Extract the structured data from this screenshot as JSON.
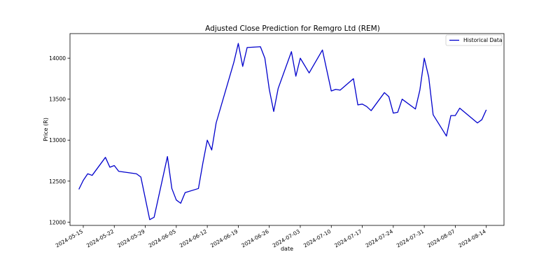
{
  "chart_data": {
    "type": "line",
    "title": "Adjusted Close Prediction for Remgro Ltd (REM)",
    "xlabel": "date",
    "ylabel": "Price (R)",
    "ylim": [
      11960,
      14300
    ],
    "xlim": [
      "2024-05-12",
      "2024-08-18"
    ],
    "yticks": [
      12000,
      12500,
      13000,
      13500,
      14000
    ],
    "xticks": [
      "2024-05-15",
      "2024-05-22",
      "2024-05-29",
      "2024-06-05",
      "2024-06-12",
      "2024-06-19",
      "2024-06-26",
      "2024-07-03",
      "2024-07-10",
      "2024-07-17",
      "2024-07-24",
      "2024-07-31",
      "2024-08-07",
      "2024-08-14"
    ],
    "grid": false,
    "legend_position": "top-right",
    "series": [
      {
        "name": "Historical Data",
        "color": "#0000cc",
        "x": [
          "2024-05-14",
          "2024-05-15",
          "2024-05-16",
          "2024-05-17",
          "2024-05-20",
          "2024-05-21",
          "2024-05-22",
          "2024-05-23",
          "2024-05-27",
          "2024-05-28",
          "2024-05-30",
          "2024-05-31",
          "2024-06-03",
          "2024-06-04",
          "2024-06-05",
          "2024-06-06",
          "2024-06-07",
          "2024-06-10",
          "2024-06-11",
          "2024-06-12",
          "2024-06-13",
          "2024-06-14",
          "2024-06-18",
          "2024-06-19",
          "2024-06-20",
          "2024-06-21",
          "2024-06-24",
          "2024-06-25",
          "2024-06-26",
          "2024-06-27",
          "2024-06-28",
          "2024-07-01",
          "2024-07-02",
          "2024-07-03",
          "2024-07-05",
          "2024-07-08",
          "2024-07-09",
          "2024-07-10",
          "2024-07-11",
          "2024-07-12",
          "2024-07-15",
          "2024-07-16",
          "2024-07-17",
          "2024-07-18",
          "2024-07-19",
          "2024-07-22",
          "2024-07-23",
          "2024-07-24",
          "2024-07-25",
          "2024-07-26",
          "2024-07-29",
          "2024-07-30",
          "2024-07-31",
          "2024-08-01",
          "2024-08-02",
          "2024-08-05",
          "2024-08-06",
          "2024-08-07",
          "2024-08-08",
          "2024-08-12",
          "2024-08-13",
          "2024-08-14"
        ],
        "values": [
          12400,
          12510,
          12590,
          12570,
          12790,
          12670,
          12690,
          12620,
          12590,
          12550,
          12030,
          12060,
          12800,
          12410,
          12270,
          12230,
          12360,
          12410,
          12720,
          13000,
          12880,
          13210,
          13950,
          14180,
          13900,
          14130,
          14140,
          14000,
          13620,
          13350,
          13630,
          14080,
          13780,
          14000,
          13820,
          14100,
          13850,
          13600,
          13620,
          13610,
          13750,
          13430,
          13440,
          13410,
          13360,
          13580,
          13530,
          13330,
          13340,
          13500,
          13380,
          13610,
          14000,
          13770,
          13310,
          13050,
          13300,
          13300,
          13390,
          13210,
          13250,
          13370
        ]
      }
    ]
  }
}
